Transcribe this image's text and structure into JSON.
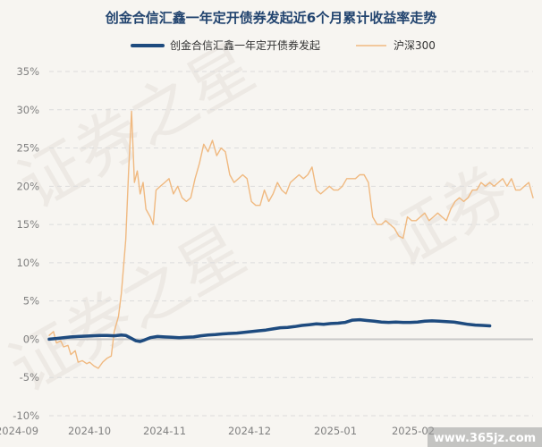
{
  "chart_data": {
    "type": "line",
    "title": "创金合信汇鑫一年定开债券发起近6个月累计收益率走势",
    "legend_position": "top",
    "x_ticks": [
      "2024-09",
      "2024-10",
      "2024-11",
      "2024-12",
      "2025-01",
      "2025-02"
    ],
    "ylim": [
      -10,
      35
    ],
    "y_ticks": [
      "35%",
      "30%",
      "25%",
      "20%",
      "15%",
      "10%",
      "5%",
      "0%",
      "-5%",
      "-10%"
    ],
    "grid": true,
    "colors": {
      "fund": "#1e4b7f",
      "index": "#f0b980"
    },
    "series": [
      {
        "name": "创金合信汇鑫一年定开债券发起",
        "values": [
          [
            0,
            0
          ],
          [
            5,
            0.1
          ],
          [
            10,
            0.2
          ],
          [
            15,
            0.3
          ],
          [
            20,
            0.35
          ],
          [
            25,
            0.4
          ],
          [
            30,
            0.45
          ],
          [
            35,
            0.5
          ],
          [
            40,
            0.5
          ],
          [
            45,
            0.45
          ],
          [
            50,
            0.55
          ],
          [
            53,
            0.5
          ],
          [
            56,
            0.2
          ],
          [
            60,
            -0.2
          ],
          [
            63,
            -0.3
          ],
          [
            66,
            -0.1
          ],
          [
            70,
            0.2
          ],
          [
            75,
            0.35
          ],
          [
            80,
            0.3
          ],
          [
            85,
            0.25
          ],
          [
            90,
            0.2
          ],
          [
            95,
            0.25
          ],
          [
            100,
            0.3
          ],
          [
            105,
            0.45
          ],
          [
            110,
            0.55
          ],
          [
            115,
            0.6
          ],
          [
            120,
            0.7
          ],
          [
            125,
            0.75
          ],
          [
            130,
            0.8
          ],
          [
            135,
            0.9
          ],
          [
            140,
            1.0
          ],
          [
            145,
            1.1
          ],
          [
            150,
            1.2
          ],
          [
            155,
            1.35
          ],
          [
            160,
            1.5
          ],
          [
            165,
            1.55
          ],
          [
            170,
            1.65
          ],
          [
            175,
            1.8
          ],
          [
            180,
            1.9
          ],
          [
            185,
            2.0
          ],
          [
            190,
            1.95
          ],
          [
            195,
            2.05
          ],
          [
            200,
            2.1
          ],
          [
            205,
            2.2
          ],
          [
            210,
            2.5
          ],
          [
            215,
            2.55
          ],
          [
            220,
            2.45
          ],
          [
            225,
            2.35
          ],
          [
            230,
            2.25
          ],
          [
            235,
            2.2
          ],
          [
            240,
            2.25
          ],
          [
            245,
            2.2
          ],
          [
            250,
            2.2
          ],
          [
            255,
            2.25
          ],
          [
            260,
            2.35
          ],
          [
            265,
            2.4
          ],
          [
            270,
            2.35
          ],
          [
            275,
            2.3
          ],
          [
            280,
            2.25
          ],
          [
            285,
            2.1
          ],
          [
            290,
            1.95
          ],
          [
            295,
            1.85
          ],
          [
            300,
            1.8
          ],
          [
            305,
            1.75
          ]
        ]
      },
      {
        "name": "沪深300",
        "values": [
          [
            0,
            0.5
          ],
          [
            3,
            1.0
          ],
          [
            5,
            -0.5
          ],
          [
            8,
            -0.2
          ],
          [
            10,
            -1.0
          ],
          [
            13,
            -0.8
          ],
          [
            15,
            -2.0
          ],
          [
            18,
            -1.5
          ],
          [
            20,
            -3.0
          ],
          [
            23,
            -2.8
          ],
          [
            26,
            -3.2
          ],
          [
            28,
            -3.0
          ],
          [
            31,
            -3.5
          ],
          [
            34,
            -3.8
          ],
          [
            37,
            -3.0
          ],
          [
            40,
            -2.5
          ],
          [
            43,
            -2.2
          ],
          [
            45,
            1.0
          ],
          [
            48,
            3.0
          ],
          [
            50,
            6.0
          ],
          [
            53,
            13.0
          ],
          [
            55,
            22.0
          ],
          [
            57,
            29.8
          ],
          [
            59,
            20.5
          ],
          [
            61,
            22.0
          ],
          [
            63,
            19.0
          ],
          [
            65,
            20.5
          ],
          [
            67,
            17.0
          ],
          [
            70,
            16.0
          ],
          [
            72,
            15.0
          ],
          [
            74,
            19.5
          ],
          [
            77,
            20.0
          ],
          [
            80,
            20.5
          ],
          [
            83,
            21.0
          ],
          [
            86,
            19.0
          ],
          [
            89,
            20.0
          ],
          [
            92,
            18.5
          ],
          [
            95,
            18.0
          ],
          [
            98,
            18.5
          ],
          [
            101,
            21.0
          ],
          [
            104,
            23.0
          ],
          [
            107,
            25.5
          ],
          [
            110,
            24.5
          ],
          [
            113,
            26.0
          ],
          [
            116,
            24.0
          ],
          [
            119,
            25.0
          ],
          [
            122,
            24.5
          ],
          [
            125,
            21.5
          ],
          [
            128,
            20.5
          ],
          [
            131,
            21.0
          ],
          [
            134,
            21.5
          ],
          [
            137,
            21.0
          ],
          [
            140,
            18.0
          ],
          [
            143,
            17.5
          ],
          [
            146,
            17.5
          ],
          [
            149,
            19.5
          ],
          [
            152,
            18.0
          ],
          [
            155,
            19.0
          ],
          [
            158,
            20.5
          ],
          [
            161,
            19.5
          ],
          [
            164,
            19.0
          ],
          [
            167,
            20.5
          ],
          [
            170,
            21.0
          ],
          [
            173,
            21.5
          ],
          [
            176,
            21.0
          ],
          [
            179,
            21.5
          ],
          [
            182,
            22.5
          ],
          [
            185,
            19.5
          ],
          [
            188,
            19.0
          ],
          [
            191,
            19.5
          ],
          [
            194,
            20.0
          ],
          [
            197,
            19.5
          ],
          [
            200,
            19.5
          ],
          [
            203,
            20.0
          ],
          [
            206,
            21.0
          ],
          [
            209,
            21.0
          ],
          [
            212,
            21.0
          ],
          [
            215,
            21.5
          ],
          [
            218,
            21.5
          ],
          [
            221,
            20.5
          ],
          [
            224,
            16.0
          ],
          [
            227,
            15.0
          ],
          [
            230,
            15.0
          ],
          [
            233,
            15.5
          ],
          [
            236,
            15.0
          ],
          [
            239,
            14.5
          ],
          [
            242,
            13.5
          ],
          [
            245,
            13.2
          ],
          [
            248,
            16.0
          ],
          [
            251,
            15.5
          ],
          [
            254,
            15.5
          ],
          [
            257,
            16.0
          ],
          [
            260,
            16.5
          ],
          [
            263,
            15.5
          ],
          [
            266,
            16.0
          ],
          [
            269,
            16.5
          ],
          [
            272,
            16.0
          ],
          [
            275,
            15.5
          ],
          [
            278,
            17.0
          ],
          [
            281,
            18.0
          ],
          [
            284,
            18.5
          ],
          [
            287,
            18.0
          ],
          [
            290,
            18.5
          ],
          [
            293,
            19.5
          ],
          [
            296,
            19.5
          ],
          [
            299,
            20.5
          ],
          [
            302,
            20.0
          ],
          [
            305,
            20.5
          ],
          [
            308,
            20.0
          ],
          [
            311,
            20.5
          ],
          [
            314,
            21.0
          ],
          [
            317,
            20.0
          ],
          [
            320,
            21.0
          ],
          [
            323,
            19.5
          ],
          [
            326,
            19.5
          ],
          [
            329,
            20.0
          ],
          [
            332,
            20.5
          ],
          [
            335,
            18.5
          ]
        ]
      }
    ]
  }
}
